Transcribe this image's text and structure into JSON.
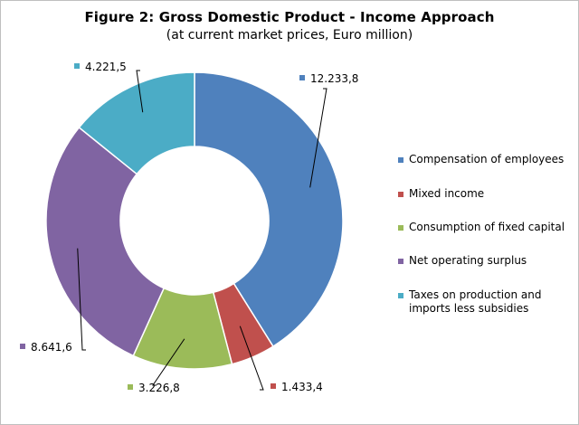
{
  "chart_data": {
    "type": "pie",
    "title": "Figure 2: Gross Domestic Product - Income Approach",
    "subtitle": "(at current market prices, Euro million)",
    "legend_position": "right",
    "slices": [
      {
        "label": "Compensation of employees",
        "value": 12233.8,
        "display": "12.233,8",
        "color": "#4f81bd"
      },
      {
        "label": "Mixed income",
        "value": 1433.4,
        "display": "1.433,4",
        "color": "#c0504d"
      },
      {
        "label": "Consumption of fixed capital",
        "value": 3226.8,
        "display": "3.226,8",
        "color": "#9bbb59"
      },
      {
        "label": "Net operating surplus",
        "value": 8641.6,
        "display": "8.641,6",
        "color": "#8064a2"
      },
      {
        "label": "Taxes on production and imports less subsidies",
        "value": 4221.5,
        "display": "4.221,5",
        "color": "#4bacc6"
      }
    ]
  }
}
